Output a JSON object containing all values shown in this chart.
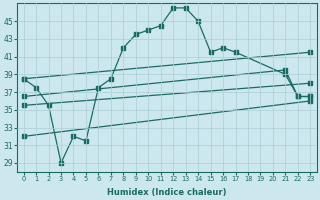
{
  "xlabel": "Humidex (Indice chaleur)",
  "background_color": "#cce8ee",
  "grid_color": "#aacdd6",
  "line_color": "#1a6b62",
  "xlim": [
    -0.5,
    23.5
  ],
  "ylim": [
    28,
    47
  ],
  "xticks": [
    0,
    1,
    2,
    3,
    4,
    5,
    6,
    7,
    8,
    9,
    10,
    11,
    12,
    13,
    14,
    15,
    16,
    17,
    18,
    19,
    20,
    21,
    22,
    23
  ],
  "yticks": [
    29,
    31,
    33,
    35,
    37,
    39,
    41,
    43,
    45
  ],
  "main_curve_x": [
    0,
    1,
    2,
    3,
    4,
    5,
    6,
    7,
    8,
    9,
    10,
    11,
    12,
    13,
    14,
    15,
    16,
    17,
    21,
    22,
    23
  ],
  "main_curve_y": [
    38.5,
    37.5,
    35.5,
    29.0,
    32.0,
    31.5,
    37.5,
    38.5,
    42.0,
    43.5,
    44.0,
    44.5,
    46.5,
    46.5,
    45.0,
    41.5,
    42.0,
    41.5,
    39.0,
    36.5,
    36.5
  ],
  "upper_line_x": [
    0,
    23
  ],
  "upper_line_y": [
    38.5,
    41.5
  ],
  "mid_upper_line_x": [
    0,
    21,
    22,
    23
  ],
  "mid_upper_line_y": [
    36.5,
    39.5,
    36.5,
    36.5
  ],
  "mid_lower_line_x": [
    0,
    23
  ],
  "mid_lower_line_y": [
    35.5,
    38.0
  ],
  "lower_line_x": [
    0,
    23
  ],
  "lower_line_y": [
    32.0,
    36.0
  ]
}
